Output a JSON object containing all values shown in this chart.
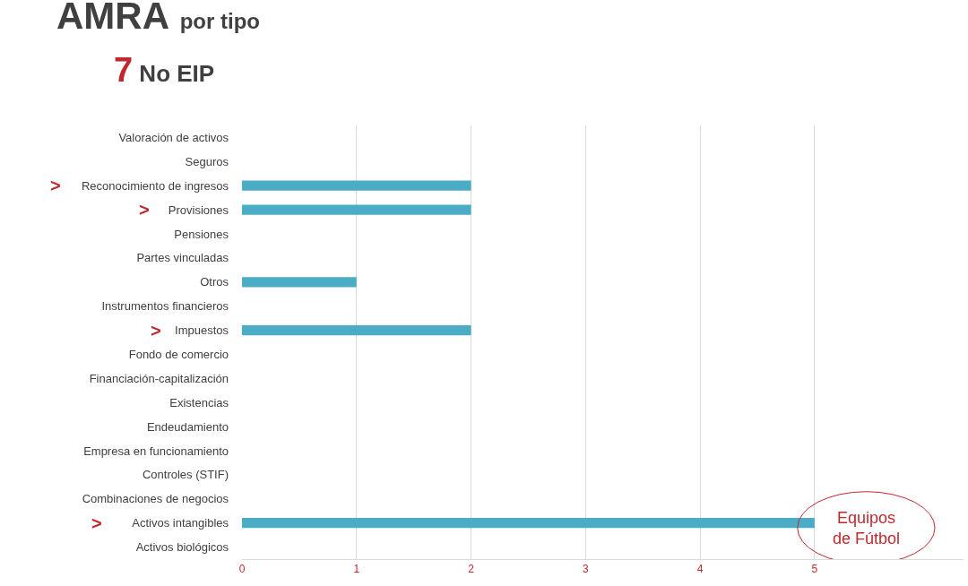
{
  "chart_data": {
    "type": "bar",
    "orientation": "horizontal",
    "title": "AMRA por tipo",
    "subtitle": "7 No EIP",
    "categories": [
      "Valoración de activos",
      "Seguros",
      "Reconocimiento de ingresos",
      "Provisiones",
      "Pensiones",
      "Partes vinculadas",
      "Otros",
      "Instrumentos financieros",
      "Impuestos",
      "Fondo de comercio",
      "Financiación-capitalización",
      "Existencias",
      "Endeudamiento",
      "Empresa en funcionamiento",
      "Controles (STIF)",
      "Combinaciones de negocios",
      "Activos intangibles",
      "Activos biológicos"
    ],
    "values": [
      0,
      0,
      2,
      2,
      0,
      0,
      1,
      0,
      2,
      0,
      0,
      0,
      0,
      0,
      0,
      0,
      5,
      0
    ],
    "color": "#4bacc6",
    "xlim": [
      0,
      6.3
    ],
    "xticks": [
      0,
      1,
      2,
      3,
      4,
      5
    ],
    "grid": "x",
    "annotations": [
      ">",
      ">",
      ">",
      ">",
      "Equipos\nde Fútbol"
    ]
  }
}
